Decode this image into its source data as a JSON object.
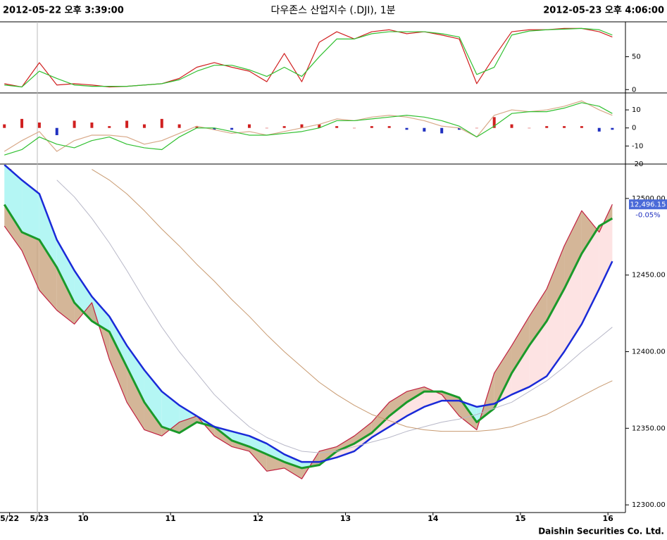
{
  "header": {
    "left": "2012-05-22 오후 3:39:00",
    "title": "다우존스 산업지수 (.DJI), 1분",
    "right": "2012-05-23 오후 4:06:00"
  },
  "footer": "Daishin Securities Co. Ltd.",
  "chart_data": [
    {
      "type": "line",
      "xlim": [
        9.05,
        16.2
      ],
      "ylim": [
        -4,
        102
      ],
      "yticks": [
        0,
        50
      ],
      "x": [
        9.1,
        9.3,
        9.5,
        9.7,
        9.9,
        10.1,
        10.3,
        10.5,
        10.7,
        10.9,
        11.1,
        11.3,
        11.5,
        11.7,
        11.9,
        12.1,
        12.3,
        12.5,
        12.7,
        12.9,
        13.1,
        13.3,
        13.5,
        13.7,
        13.9,
        14.1,
        14.3,
        14.5,
        14.7,
        14.9,
        15.1,
        15.3,
        15.5,
        15.7,
        15.9,
        16.05
      ],
      "series": [
        {
          "color": "#d02020",
          "values": [
            9,
            4,
            41,
            7,
            9,
            7,
            4,
            5,
            7,
            9,
            17,
            34,
            41,
            34,
            28,
            12,
            55,
            12,
            72,
            88,
            77,
            88,
            91,
            85,
            88,
            83,
            77,
            9,
            50,
            88,
            91,
            91,
            93,
            93,
            88,
            80
          ]
        },
        {
          "color": "#30c030",
          "values": [
            7,
            4,
            28,
            17,
            7,
            5,
            5,
            5,
            7,
            9,
            15,
            28,
            37,
            37,
            30,
            20,
            34,
            20,
            50,
            77,
            77,
            85,
            88,
            88,
            88,
            85,
            80,
            23,
            34,
            83,
            89,
            91,
            92,
            93,
            91,
            83
          ]
        }
      ]
    },
    {
      "type": "line",
      "xlim": [
        9.05,
        16.2
      ],
      "ylim": [
        -20,
        19
      ],
      "yticks": [
        -20,
        -10,
        0,
        10
      ],
      "x": [
        9.1,
        9.3,
        9.5,
        9.7,
        9.9,
        10.1,
        10.3,
        10.5,
        10.7,
        10.9,
        11.1,
        11.3,
        11.5,
        11.7,
        11.9,
        12.1,
        12.3,
        12.5,
        12.7,
        12.9,
        13.1,
        13.3,
        13.5,
        13.7,
        13.9,
        14.1,
        14.3,
        14.5,
        14.7,
        14.9,
        15.1,
        15.3,
        15.5,
        15.7,
        15.9,
        16.05
      ],
      "series": [
        {
          "mark": "bar",
          "color": "#d02020",
          "negative_color": "#2030c0",
          "values": [
            2,
            5,
            3,
            -4,
            4,
            3,
            1,
            4,
            2,
            5,
            2,
            1,
            -1,
            -1,
            2,
            0,
            1,
            2,
            2,
            1,
            0,
            1,
            1,
            -1,
            -2,
            -3,
            -1,
            0,
            6,
            2,
            0,
            1,
            1,
            1,
            -2,
            -1
          ]
        },
        {
          "color": "#d8a888",
          "values": [
            -13,
            -7,
            -2,
            -13,
            -7,
            -4,
            -4,
            -5,
            -9,
            -7,
            -3,
            1,
            -1,
            -3,
            -2,
            -4,
            -2,
            0,
            2,
            5,
            4,
            6,
            7,
            6,
            4,
            1,
            0,
            -5,
            7,
            10,
            9,
            10,
            12,
            15,
            10,
            7
          ]
        },
        {
          "color": "#30c030",
          "values": [
            -15,
            -12,
            -5,
            -9,
            -11,
            -7,
            -5,
            -9,
            -11,
            -12,
            -5,
            0,
            0,
            -2,
            -4,
            -4,
            -3,
            -2,
            0,
            4,
            4,
            5,
            6,
            7,
            6,
            4,
            1,
            -5,
            1,
            8,
            9,
            9,
            11,
            14,
            12,
            8
          ]
        }
      ]
    },
    {
      "type": "line",
      "xlim": [
        9.05,
        16.2
      ],
      "ylim": [
        12295,
        12522
      ],
      "yticks": [
        {
          "value": 12300,
          "label": "12300.00"
        },
        {
          "value": 12350,
          "label": "12350.00"
        },
        {
          "value": 12400,
          "label": "12400.00"
        },
        {
          "value": 12450,
          "label": "12450.00"
        },
        {
          "value": 12500,
          "label": "12500.00"
        }
      ],
      "xticks": [
        {
          "value": 9.16,
          "label": "5/22"
        },
        {
          "value": 9.5,
          "label": "5/23"
        },
        10,
        11,
        12,
        13,
        14,
        15,
        16
      ],
      "x": [
        9.1,
        9.3,
        9.5,
        9.7,
        9.9,
        10.1,
        10.3,
        10.5,
        10.7,
        10.9,
        11.1,
        11.3,
        11.5,
        11.7,
        11.9,
        12.1,
        12.3,
        12.5,
        12.7,
        12.9,
        13.1,
        13.3,
        13.5,
        13.7,
        13.9,
        14.1,
        14.3,
        14.5,
        14.7,
        14.9,
        15.1,
        15.3,
        15.5,
        15.7,
        15.9,
        16.05
      ],
      "price_fill": "#c9a47e",
      "band_fill": {
        "falling": "#b4f6f4",
        "rising": "#fde3e3"
      },
      "last_value": {
        "value": 12496.15,
        "label": "12,496.15"
      },
      "change": {
        "value": -0.05,
        "label": "-0.05%"
      },
      "series": [
        {
          "color": "#c02040",
          "values": [
            12482,
            12466,
            12440,
            12427,
            12418,
            12432,
            12395,
            12367,
            12349,
            12345,
            12354,
            12358,
            12345,
            12338,
            12335,
            12322,
            12324,
            12317,
            12335,
            12338,
            12345,
            12354,
            12367,
            12374,
            12377,
            12372,
            12358,
            12349,
            12386,
            12404,
            12423,
            12441,
            12469,
            12492,
            12478,
            12496.15
          ]
        },
        {
          "color": "#1a9a2a",
          "values": [
            12496,
            12478,
            12473,
            12455,
            12432,
            12420,
            12413,
            12390,
            12367,
            12351,
            12347,
            12354,
            12351,
            12342,
            12338,
            12333,
            12328,
            12324,
            12326,
            12335,
            12340,
            12347,
            12358,
            12367,
            12374,
            12374,
            12370,
            12354,
            12363,
            12386,
            12404,
            12420,
            12441,
            12464,
            12482,
            12487
          ]
        },
        {
          "color": "#1a2ad8",
          "values": [
            12522,
            12512,
            12503,
            12473,
            12453,
            12436,
            12423,
            12404,
            12388,
            12374,
            12365,
            12358,
            12351,
            12348,
            12345,
            12340,
            12333,
            12328,
            12328,
            12331,
            12335,
            12344,
            12351,
            12358,
            12364,
            12368,
            12368,
            12364,
            12366,
            12372,
            12377,
            12384,
            12400,
            12418,
            12441,
            12459
          ]
        },
        {
          "color": "#b8b8c8",
          "values": [
            null,
            null,
            null,
            12512,
            12501,
            12487,
            12471,
            12453,
            12434,
            12416,
            12400,
            12386,
            12372,
            12361,
            12351,
            12344,
            12339,
            12335,
            12334,
            12335,
            12338,
            12341,
            12344,
            12348,
            12351,
            12354,
            12356,
            12359,
            12363,
            12367,
            12374,
            12381,
            12390,
            12400,
            12409,
            12416
          ]
        },
        {
          "color": "#c89a70",
          "values": [
            null,
            null,
            null,
            null,
            null,
            12519,
            12512,
            12503,
            12492,
            12480,
            12469,
            12457,
            12446,
            12434,
            12423,
            12411,
            12400,
            12390,
            12380,
            12372,
            12365,
            12359,
            12355,
            12351,
            12349,
            12348,
            12348,
            12348,
            12349,
            12351,
            12355,
            12359,
            12365,
            12371,
            12377,
            12381
          ]
        }
      ]
    }
  ]
}
